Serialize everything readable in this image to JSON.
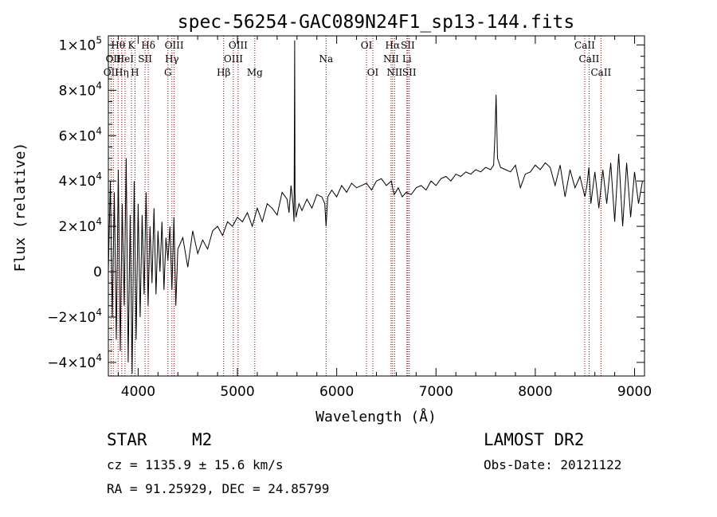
{
  "chart_data": {
    "type": "line",
    "title": "spec-56254-GAC089N24F1_sp13-144.fits",
    "xlabel": "Wavelength (Å)",
    "ylabel": "Flux (relative)",
    "xlim": [
      3700,
      9100
    ],
    "ylim": [
      -46000,
      104000
    ],
    "x_ticks": [
      4000,
      5000,
      6000,
      7000,
      8000,
      9000
    ],
    "x_tick_labels": [
      "4000",
      "5000",
      "6000",
      "7000",
      "8000",
      "9000"
    ],
    "y_ticks": [
      -40000,
      -20000,
      0,
      20000,
      40000,
      60000,
      80000,
      100000
    ],
    "y_tick_labels": [
      {
        "mant": "−4×10",
        "exp": "4"
      },
      {
        "mant": "−2×10",
        "exp": "4"
      },
      {
        "mant": "0",
        "exp": ""
      },
      {
        "mant": "2×10",
        "exp": "4"
      },
      {
        "mant": "4×10",
        "exp": "4"
      },
      {
        "mant": "6×10",
        "exp": "4"
      },
      {
        "mant": "8×10",
        "exp": "4"
      },
      {
        "mant": "1×10",
        "exp": "5"
      }
    ],
    "grid": false,
    "line_color": "#000000",
    "marker_color": "#8b0000",
    "lines": [
      {
        "wave": 3727,
        "label": "OII",
        "row": 2
      },
      {
        "wave": 3750,
        "label": "OII",
        "row": 1
      },
      {
        "wave": 3798,
        "label": "Hθ",
        "row": 0
      },
      {
        "wave": 3835,
        "label": "Hη",
        "row": 2
      },
      {
        "wave": 3868,
        "label": "HeI",
        "row": 1
      },
      {
        "wave": 3933,
        "label": "K",
        "row": 0
      },
      {
        "wave": 3968,
        "label": "H",
        "row": 2
      },
      {
        "wave": 4070,
        "label": "SII",
        "row": 1
      },
      {
        "wave": 4102,
        "label": "Hδ",
        "row": 0
      },
      {
        "wave": 4300,
        "label": "G",
        "row": 2
      },
      {
        "wave": 4340,
        "label": "Hγ",
        "row": 1
      },
      {
        "wave": 4363,
        "label": "OIII",
        "row": 0
      },
      {
        "wave": 4861,
        "label": "Hβ",
        "row": 2
      },
      {
        "wave": 4959,
        "label": "OIII",
        "row": 1
      },
      {
        "wave": 5007,
        "label": "OIII",
        "row": 0
      },
      {
        "wave": 5175,
        "label": "Mg",
        "row": 2
      },
      {
        "wave": 5893,
        "label": "Na",
        "row": 1
      },
      {
        "wave": 6300,
        "label": "OI",
        "row": 0
      },
      {
        "wave": 6364,
        "label": "OI",
        "row": 2
      },
      {
        "wave": 6548,
        "label": "NII",
        "row": 1
      },
      {
        "wave": 6563,
        "label": "Hα",
        "row": 0
      },
      {
        "wave": 6583,
        "label": "NII",
        "row": 2
      },
      {
        "wave": 6707,
        "label": "Li",
        "row": 1
      },
      {
        "wave": 6716,
        "label": "SII",
        "row": 0
      },
      {
        "wave": 6731,
        "label": "SII",
        "row": 2
      },
      {
        "wave": 8498,
        "label": "CaII",
        "row": 0
      },
      {
        "wave": 8542,
        "label": "CaII",
        "row": 1
      },
      {
        "wave": 8662,
        "label": "CaII",
        "row": 2
      }
    ],
    "series": [
      {
        "x": [
          3700,
          3720,
          3740,
          3760,
          3780,
          3800,
          3820,
          3840,
          3860,
          3880,
          3900,
          3920,
          3940,
          3960,
          3980,
          4000,
          4020,
          4040,
          4060,
          4080,
          4100,
          4120,
          4140,
          4160,
          4180,
          4200,
          4220,
          4240,
          4260,
          4280,
          4300,
          4320,
          4340,
          4360,
          4380,
          4400,
          4450,
          4500,
          4550,
          4600,
          4650,
          4700,
          4750,
          4800,
          4850,
          4900,
          4950,
          5000,
          5050,
          5100,
          5150,
          5200,
          5250,
          5300,
          5350,
          5400,
          5450,
          5500,
          5520,
          5540,
          5560,
          5570,
          5577,
          5580,
          5590,
          5620,
          5650,
          5700,
          5750,
          5800,
          5850,
          5880,
          5893,
          5910,
          5950,
          6000,
          6050,
          6100,
          6150,
          6200,
          6250,
          6300,
          6350,
          6400,
          6450,
          6500,
          6550,
          6563,
          6580,
          6620,
          6660,
          6700,
          6750,
          6800,
          6850,
          6900,
          6950,
          7000,
          7050,
          7100,
          7150,
          7200,
          7250,
          7300,
          7350,
          7400,
          7450,
          7500,
          7550,
          7580,
          7594,
          7605,
          7620,
          7650,
          7700,
          7750,
          7800,
          7850,
          7900,
          7950,
          8000,
          8050,
          8100,
          8150,
          8200,
          8250,
          8300,
          8350,
          8400,
          8450,
          8500,
          8520,
          8540,
          8560,
          8600,
          8640,
          8680,
          8720,
          8760,
          8800,
          8840,
          8880,
          8920,
          8960,
          9000,
          9040,
          9080
        ],
        "y": [
          0,
          40000,
          -20000,
          35000,
          -30000,
          45000,
          -35000,
          30000,
          -15000,
          50000,
          -40000,
          25000,
          -45000,
          40000,
          -30000,
          30000,
          -20000,
          25000,
          -10000,
          35000,
          -15000,
          20000,
          -5000,
          28000,
          -10000,
          18000,
          0,
          22000,
          -8000,
          15000,
          5000,
          20000,
          -8000,
          24000,
          -15000,
          10000,
          15000,
          2000,
          18000,
          8000,
          14000,
          10000,
          18000,
          20000,
          16000,
          22000,
          20000,
          24000,
          22000,
          26000,
          20000,
          28000,
          22000,
          30000,
          28000,
          25000,
          35000,
          32000,
          26000,
          38000,
          30000,
          22000,
          102000,
          35000,
          24000,
          30000,
          27000,
          32000,
          28000,
          34000,
          33000,
          30000,
          20000,
          33000,
          36000,
          33000,
          38000,
          35000,
          39000,
          37000,
          38000,
          39000,
          36000,
          40000,
          41000,
          38000,
          40000,
          37000,
          34000,
          37000,
          33000,
          35000,
          34000,
          37000,
          38000,
          36000,
          40000,
          38000,
          41000,
          42000,
          40000,
          43000,
          42000,
          44000,
          43000,
          45000,
          44000,
          46000,
          45000,
          47000,
          60000,
          78000,
          50000,
          46000,
          45000,
          44000,
          47000,
          37000,
          43000,
          44000,
          47000,
          45000,
          48000,
          46000,
          38000,
          47000,
          33000,
          45000,
          37000,
          42000,
          33000,
          38000,
          46000,
          30000,
          44000,
          28000,
          45000,
          30000,
          48000,
          22000,
          52000,
          20000,
          48000,
          24000,
          44000,
          30000,
          40000
        ]
      }
    ]
  },
  "info": {
    "object_type": "STAR",
    "subclass": "M2",
    "survey": "LAMOST DR2",
    "cz": "cz = 1135.9 ± 15.6 km/s",
    "obs_date": "Obs-Date: 20121122",
    "coords": "RA =  91.25929, DEC =  24.85799"
  }
}
